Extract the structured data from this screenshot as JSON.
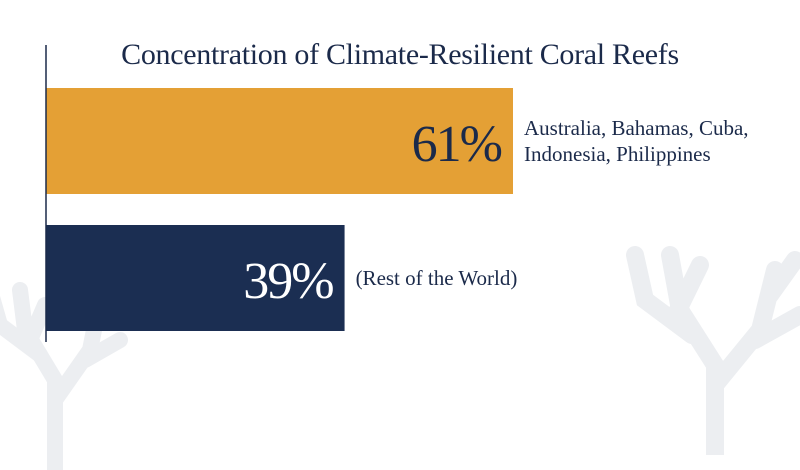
{
  "chart_data": {
    "type": "bar",
    "orientation": "horizontal",
    "title": "Concentration of Climate-Resilient Coral Reefs",
    "xlabel": "",
    "ylabel": "",
    "xlim": [
      0,
      100
    ],
    "grid": false,
    "legend": "none",
    "bars": [
      {
        "value": 61,
        "value_label": "61%",
        "annotation": [
          "Australia, Bahamas, Cuba,",
          "Indonesia, Philippines"
        ],
        "color": "#e4a035"
      },
      {
        "value": 39,
        "value_label": "39%",
        "annotation": [
          "(Rest of the World)"
        ],
        "color": "#1b2e52"
      }
    ]
  },
  "colors": {
    "title_text": "#1b2a4a",
    "annotation_text": "#1b2a4a",
    "value_label_text": [
      "#1b2a4a",
      "#ffffff"
    ],
    "axis_line": "#1b2a4a",
    "decoration": "#eceef1"
  },
  "decoration": {
    "icon": "coral-silhouette-icon"
  }
}
